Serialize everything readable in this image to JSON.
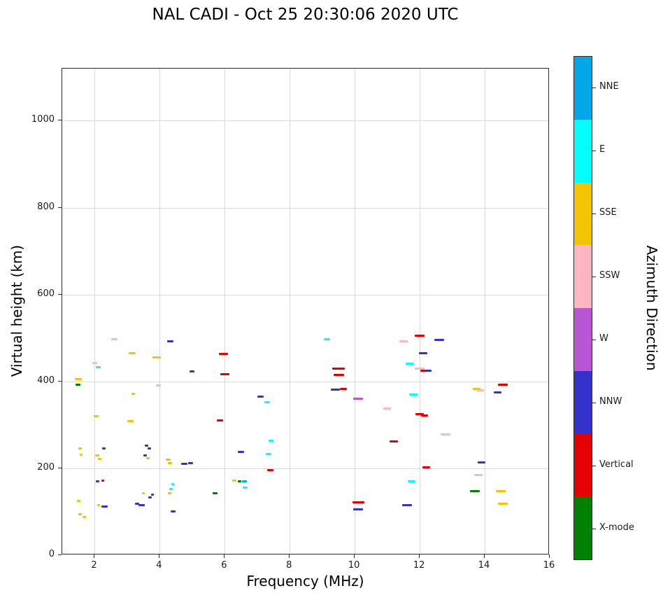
{
  "chart_data": {
    "type": "scatter",
    "title": "NAL CADI - Oct 25 20:30:06 2020 UTC",
    "xlabel": "Frequency (MHz)",
    "ylabel": "Virtual height (km)",
    "colorbar_label": "Azimuth Direction",
    "xlim": [
      1,
      16
    ],
    "ylim": [
      0,
      1120
    ],
    "xticks": [
      2,
      4,
      6,
      8,
      10,
      12,
      14,
      16
    ],
    "yticks": [
      0,
      200,
      400,
      600,
      800,
      1000
    ],
    "grid": true,
    "legend_position": "right-colorbar",
    "legend": [
      {
        "key": "NNE",
        "label": "NNE",
        "color": "#00a8e8"
      },
      {
        "key": "E",
        "label": "E",
        "color": "#00ffff"
      },
      {
        "key": "SSE",
        "label": "SSE",
        "color": "#f2c500"
      },
      {
        "key": "SSW",
        "label": "SSW",
        "color": "#ffb6c1"
      },
      {
        "key": "W",
        "label": "W",
        "color": "#ba55d3"
      },
      {
        "key": "NNW",
        "label": "NNW",
        "color": "#3333cc"
      },
      {
        "key": "V",
        "label": "Vertical",
        "color": "#e60000"
      },
      {
        "key": "X",
        "label": "X-mode",
        "color": "#008000"
      }
    ],
    "points": [
      [
        1.5,
        405,
        "SSE",
        0.22
      ],
      [
        1.48,
        392,
        "X",
        0.15
      ],
      [
        1.55,
        245,
        "SSE",
        0.1
      ],
      [
        1.58,
        232,
        "SSE",
        0.1
      ],
      [
        1.5,
        125,
        "SSE",
        0.1
      ],
      [
        1.55,
        95,
        "SSE",
        0.12
      ],
      [
        1.68,
        88,
        "SSE",
        0.1
      ],
      [
        2.0,
        442,
        "SSW",
        0.15
      ],
      [
        2.1,
        433,
        "E",
        0.15
      ],
      [
        2.05,
        320,
        "SSE",
        0.15
      ],
      [
        2.08,
        230,
        "SSE",
        0.12
      ],
      [
        2.15,
        222,
        "SSE",
        0.1
      ],
      [
        2.08,
        170,
        "NNW",
        0.1
      ],
      [
        2.25,
        172,
        "V",
        0.1
      ],
      [
        2.28,
        245,
        "NNW",
        0.12
      ],
      [
        2.12,
        115,
        "SSE",
        0.1
      ],
      [
        2.3,
        112,
        "NNW",
        0.18
      ],
      [
        2.6,
        497,
        "SSW",
        0.2
      ],
      [
        3.15,
        465,
        "SSE",
        0.22
      ],
      [
        3.1,
        308,
        "SSE",
        0.2
      ],
      [
        3.18,
        372,
        "SSE",
        0.12
      ],
      [
        3.3,
        118,
        "NNW",
        0.12
      ],
      [
        3.45,
        115,
        "NNW",
        0.2
      ],
      [
        3.5,
        142,
        "SSE",
        0.1
      ],
      [
        3.55,
        230,
        "NNW",
        0.12
      ],
      [
        3.63,
        224,
        "SSE",
        0.1
      ],
      [
        3.6,
        252,
        "NNW",
        0.1
      ],
      [
        3.68,
        245,
        "NNW",
        0.1
      ],
      [
        3.7,
        133,
        "NNW",
        0.1
      ],
      [
        3.78,
        140,
        "NNW",
        0.1
      ],
      [
        3.9,
        455,
        "SSE",
        0.25
      ],
      [
        3.95,
        390,
        "SSW",
        0.15
      ],
      [
        4.25,
        220,
        "SSE",
        0.15
      ],
      [
        4.32,
        212,
        "SSE",
        0.12
      ],
      [
        4.32,
        492,
        "NNW",
        0.2
      ],
      [
        4.35,
        152,
        "E",
        0.12
      ],
      [
        4.3,
        143,
        "SSE",
        0.1
      ],
      [
        4.4,
        163,
        "E",
        0.1
      ],
      [
        4.42,
        100,
        "NNW",
        0.15
      ],
      [
        4.75,
        210,
        "NNW",
        0.2
      ],
      [
        4.95,
        212,
        "NNW",
        0.15
      ],
      [
        5.0,
        423,
        "NNW",
        0.15
      ],
      [
        5.7,
        143,
        "X",
        0.15
      ],
      [
        5.95,
        463,
        "V",
        0.28
      ],
      [
        6.0,
        417,
        "V",
        0.28
      ],
      [
        5.85,
        311,
        "V",
        0.2
      ],
      [
        6.3,
        172,
        "SSE",
        0.12
      ],
      [
        6.45,
        170,
        "X",
        0.1
      ],
      [
        6.5,
        237,
        "NNW",
        0.2
      ],
      [
        6.6,
        170,
        "NNE",
        0.15
      ],
      [
        6.62,
        155,
        "E",
        0.15
      ],
      [
        7.1,
        365,
        "NNW",
        0.2
      ],
      [
        7.3,
        352,
        "E",
        0.18
      ],
      [
        7.42,
        263,
        "E",
        0.15
      ],
      [
        7.35,
        233,
        "E",
        0.18
      ],
      [
        7.4,
        195,
        "V",
        0.18
      ],
      [
        9.15,
        497,
        "E",
        0.2
      ],
      [
        9.5,
        430,
        "V",
        0.38
      ],
      [
        9.52,
        415,
        "V",
        0.32
      ],
      [
        9.4,
        381,
        "NNW",
        0.28
      ],
      [
        9.65,
        383,
        "V",
        0.2
      ],
      [
        10.1,
        360,
        "W",
        0.3
      ],
      [
        10.05,
        122,
        "V",
        0.25
      ],
      [
        10.22,
        121,
        "V",
        0.15
      ],
      [
        10.1,
        105,
        "NNW",
        0.3
      ],
      [
        11.0,
        338,
        "SSW",
        0.25
      ],
      [
        11.2,
        262,
        "V",
        0.25
      ],
      [
        11.5,
        492,
        "SSW",
        0.25
      ],
      [
        11.7,
        440,
        "E",
        0.25
      ],
      [
        11.6,
        115,
        "NNW",
        0.3
      ],
      [
        11.8,
        370,
        "E",
        0.25
      ],
      [
        11.75,
        170,
        "E",
        0.25
      ],
      [
        12.0,
        505,
        "V",
        0.3
      ],
      [
        12.1,
        465,
        "NNW",
        0.25
      ],
      [
        12.0,
        430,
        "SSW",
        0.3
      ],
      [
        12.12,
        425,
        "V",
        0.2
      ],
      [
        12.27,
        425,
        "NNW",
        0.2
      ],
      [
        12.0,
        325,
        "V",
        0.25
      ],
      [
        12.15,
        322,
        "V",
        0.2
      ],
      [
        12.2,
        203,
        "V",
        0.25
      ],
      [
        12.6,
        495,
        "NNW",
        0.3
      ],
      [
        12.8,
        278,
        "SSW",
        0.3
      ],
      [
        13.75,
        383,
        "SSE",
        0.25
      ],
      [
        13.87,
        380,
        "SSW",
        0.2
      ],
      [
        13.7,
        148,
        "X",
        0.3
      ],
      [
        13.8,
        185,
        "SSW",
        0.25
      ],
      [
        13.9,
        213,
        "NNW",
        0.25
      ],
      [
        14.4,
        375,
        "NNW",
        0.25
      ],
      [
        14.55,
        392,
        "V",
        0.3
      ],
      [
        14.5,
        148,
        "SSE",
        0.3
      ],
      [
        14.55,
        118,
        "SSE",
        0.3
      ]
    ]
  }
}
